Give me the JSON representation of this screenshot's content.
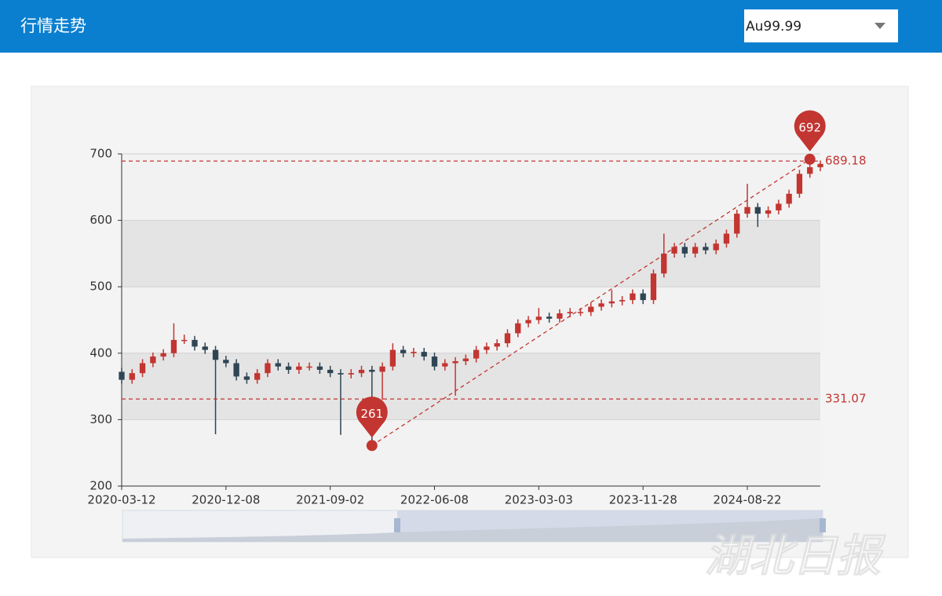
{
  "header": {
    "title": "行情走势",
    "select": "Au99.99"
  },
  "watermark": "湖北日报",
  "chart_data": {
    "type": "candlestick",
    "categories": [
      "2020-03-12",
      null,
      null,
      null,
      null,
      null,
      null,
      null,
      null,
      null,
      "2020-12-08",
      null,
      null,
      null,
      null,
      null,
      null,
      null,
      null,
      null,
      "2021-09-02",
      null,
      null,
      null,
      null,
      null,
      null,
      null,
      null,
      null,
      "2022-06-08",
      null,
      null,
      null,
      null,
      null,
      null,
      null,
      null,
      null,
      "2023-03-03",
      null,
      null,
      null,
      null,
      null,
      null,
      null,
      null,
      null,
      "2023-11-28",
      null,
      null,
      null,
      null,
      null,
      null,
      null,
      null,
      null,
      "2024-08-22",
      null,
      null,
      null,
      null,
      null,
      null,
      null
    ],
    "open": [
      372,
      360,
      370,
      385,
      395,
      400,
      420,
      420,
      410,
      405,
      390,
      385,
      365,
      360,
      370,
      385,
      380,
      375,
      380,
      380,
      375,
      370,
      368,
      370,
      375,
      372,
      380,
      405,
      400,
      402,
      395,
      380,
      385,
      388,
      392,
      405,
      410,
      415,
      430,
      445,
      450,
      455,
      452,
      460,
      462,
      462,
      470,
      475,
      478,
      480,
      490,
      480,
      520,
      550,
      560,
      550,
      560,
      555,
      565,
      580,
      610,
      620,
      610,
      615,
      625,
      640,
      670,
      680
    ],
    "close": [
      360,
      370,
      385,
      395,
      400,
      420,
      420,
      410,
      405,
      390,
      385,
      365,
      360,
      370,
      385,
      380,
      375,
      380,
      380,
      375,
      370,
      368,
      370,
      375,
      372,
      380,
      405,
      400,
      402,
      395,
      380,
      385,
      388,
      392,
      405,
      410,
      415,
      430,
      445,
      450,
      455,
      452,
      460,
      462,
      462,
      470,
      475,
      478,
      480,
      490,
      480,
      520,
      550,
      560,
      550,
      560,
      555,
      565,
      580,
      610,
      620,
      610,
      615,
      625,
      640,
      670,
      680,
      685
    ],
    "high": [
      378,
      376,
      391,
      401,
      406,
      445,
      428,
      426,
      416,
      411,
      396,
      391,
      371,
      376,
      391,
      391,
      386,
      386,
      386,
      386,
      381,
      376,
      376,
      381,
      381,
      386,
      415,
      411,
      408,
      408,
      401,
      391,
      394,
      398,
      411,
      416,
      421,
      436,
      451,
      456,
      468,
      461,
      466,
      468,
      468,
      476,
      481,
      495,
      486,
      496,
      496,
      526,
      580,
      566,
      566,
      566,
      566,
      571,
      586,
      616,
      655,
      626,
      621,
      631,
      646,
      676,
      692,
      690
    ],
    "low": [
      354,
      354,
      364,
      379,
      389,
      394,
      414,
      404,
      399,
      278,
      379,
      359,
      354,
      354,
      364,
      374,
      369,
      369,
      374,
      369,
      364,
      277,
      362,
      364,
      261,
      330,
      374,
      394,
      394,
      389,
      374,
      374,
      336,
      382,
      386,
      399,
      404,
      409,
      424,
      439,
      444,
      446,
      446,
      454,
      456,
      456,
      464,
      469,
      472,
      474,
      474,
      474,
      514,
      544,
      544,
      544,
      549,
      549,
      559,
      574,
      604,
      590,
      604,
      609,
      619,
      634,
      664,
      674
    ],
    "up_color": "#c23531",
    "down_color": "#2f4554",
    "mark_lines": [
      689.18,
      331.07
    ],
    "mark_color": "#c23531",
    "ylim": [
      200,
      700
    ],
    "yticks": [
      200,
      300,
      400,
      500,
      600,
      700
    ]
  }
}
